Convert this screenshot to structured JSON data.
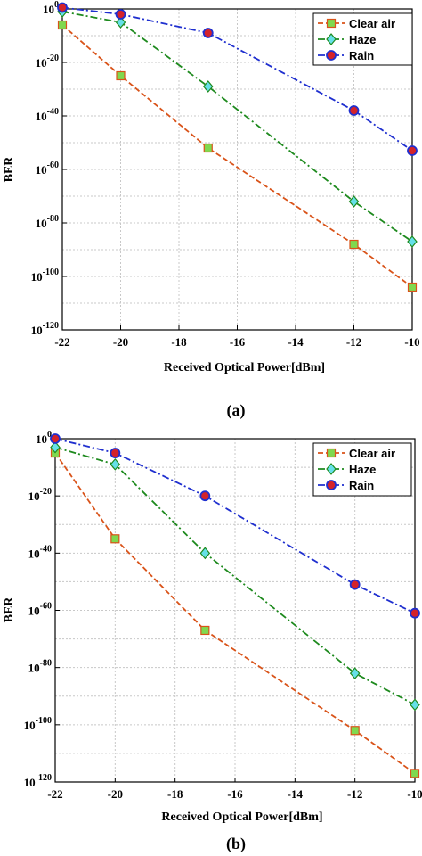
{
  "chart_data": [
    {
      "type": "line",
      "caption": "(a)",
      "title": "",
      "xlabel": "Received Optical Power[dBm]",
      "ylabel": "BER",
      "xlim": [
        -22,
        -10
      ],
      "ylim_log10": [
        -120,
        0
      ],
      "yscale": "log",
      "x_ticks": [
        -22,
        -20,
        -18,
        -16,
        -14,
        -12,
        -10
      ],
      "y_tick_exponents": [
        0,
        -20,
        -40,
        -60,
        -80,
        -100,
        -120
      ],
      "grid": true,
      "legend_position": "top-right",
      "x": [
        -22,
        -20,
        -17,
        -12,
        -10
      ],
      "series": [
        {
          "name": "Clear air",
          "color": "#d95319",
          "marker": "square",
          "marker_fill": "#7fd94f",
          "line_style": "dashed",
          "log10_values": [
            -6,
            -25,
            -52,
            -88,
            -104
          ]
        },
        {
          "name": "Haze",
          "color": "#1e8a1e",
          "marker": "diamond",
          "marker_fill": "#66e0e8",
          "line_style": "dashdot",
          "log10_values": [
            -1,
            -5,
            -29,
            -72,
            -87
          ]
        },
        {
          "name": "Rain",
          "color": "#1f2fcf",
          "marker": "circle",
          "marker_fill": "#d4232a",
          "line_style": "dashdot",
          "log10_values": [
            0.5,
            -2,
            -9,
            -38,
            -53
          ]
        }
      ]
    },
    {
      "type": "line",
      "caption": "(b)",
      "title": "",
      "xlabel": "Received Optical Power[dBm]",
      "ylabel": "BER",
      "xlim": [
        -22,
        -10
      ],
      "ylim_log10": [
        -120,
        0
      ],
      "yscale": "log",
      "x_ticks": [
        -22,
        -20,
        -18,
        -16,
        -14,
        -12,
        -10
      ],
      "y_tick_exponents": [
        0,
        -20,
        -40,
        -60,
        -80,
        -100,
        -120
      ],
      "grid": true,
      "legend_position": "top-right",
      "x": [
        -22,
        -20,
        -17,
        -12,
        -10
      ],
      "series": [
        {
          "name": "Clear air",
          "color": "#d95319",
          "marker": "square",
          "marker_fill": "#7fd94f",
          "line_style": "dashed",
          "log10_values": [
            -5,
            -35,
            -67,
            -102,
            -117
          ]
        },
        {
          "name": "Haze",
          "color": "#1e8a1e",
          "marker": "diamond",
          "marker_fill": "#66e0e8",
          "line_style": "dashdot",
          "log10_values": [
            -3,
            -9,
            -40,
            -82,
            -93
          ]
        },
        {
          "name": "Rain",
          "color": "#1f2fcf",
          "marker": "circle",
          "marker_fill": "#d4232a",
          "line_style": "dashdot",
          "log10_values": [
            0,
            -5,
            -20,
            -51,
            -61
          ]
        }
      ]
    }
  ]
}
